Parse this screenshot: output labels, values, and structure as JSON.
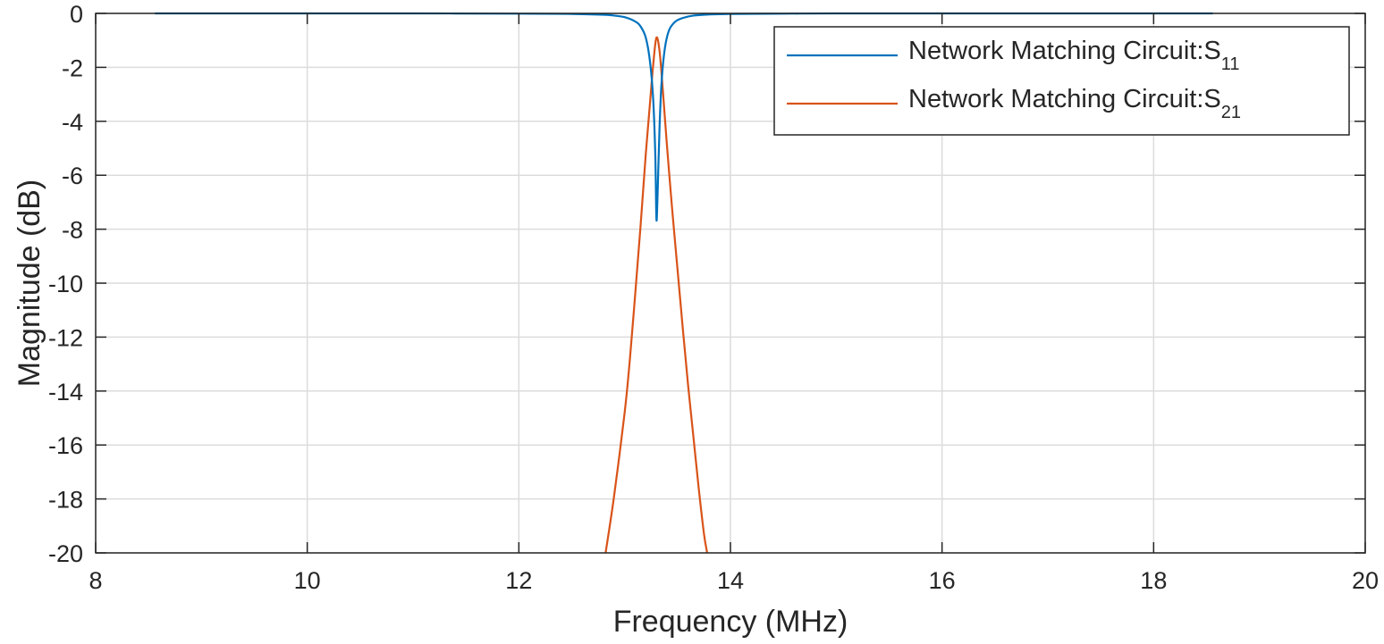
{
  "chart_data": {
    "type": "line",
    "title": "",
    "xlabel": "Frequency (MHz)",
    "ylabel": "Magnitude (dB)",
    "xlim": [
      8,
      20
    ],
    "ylim": [
      -20,
      0
    ],
    "x_ticks": [
      8,
      10,
      12,
      14,
      16,
      18,
      20
    ],
    "y_ticks": [
      0,
      -2,
      -4,
      -6,
      -8,
      -10,
      -12,
      -14,
      -16,
      -18,
      -20
    ],
    "grid": true,
    "legend_position": "top-right",
    "series": [
      {
        "name": "Network Matching Circuit:S",
        "name_subscript": "11",
        "color": "#0072BD",
        "x": [
          8.56,
          10,
          11,
          12,
          12.5,
          12.8,
          12.9,
          13.0,
          13.1,
          13.15,
          13.2,
          13.24,
          13.27,
          13.29,
          13.3,
          13.31,
          13.33,
          13.35,
          13.38,
          13.42,
          13.48,
          13.55,
          13.65,
          13.8,
          14.0,
          14.5,
          15,
          16,
          17,
          18,
          18.56
        ],
        "y": [
          0,
          0,
          0,
          -0.01,
          -0.02,
          -0.05,
          -0.08,
          -0.14,
          -0.3,
          -0.48,
          -0.9,
          -1.8,
          -3.2,
          -5.3,
          -7.6,
          -6.9,
          -4.2,
          -2.5,
          -1.3,
          -0.62,
          -0.3,
          -0.17,
          -0.08,
          -0.04,
          -0.02,
          -0.01,
          0,
          0,
          0,
          0,
          0
        ]
      },
      {
        "name": "Network Matching Circuit:S",
        "name_subscript": "21",
        "color": "#D95319",
        "x": [
          12.82,
          12.9,
          13.0,
          13.05,
          13.1,
          13.15,
          13.2,
          13.24,
          13.27,
          13.3,
          13.33,
          13.36,
          13.4,
          13.45,
          13.5,
          13.55,
          13.6,
          13.65,
          13.7,
          13.75,
          13.78
        ],
        "y": [
          -20,
          -17.9,
          -14.8,
          -12.8,
          -10.4,
          -7.9,
          -5.2,
          -3.3,
          -1.9,
          -0.9,
          -1.4,
          -2.8,
          -4.9,
          -7.3,
          -9.5,
          -11.7,
          -13.8,
          -15.7,
          -17.6,
          -19.3,
          -20
        ]
      }
    ]
  }
}
